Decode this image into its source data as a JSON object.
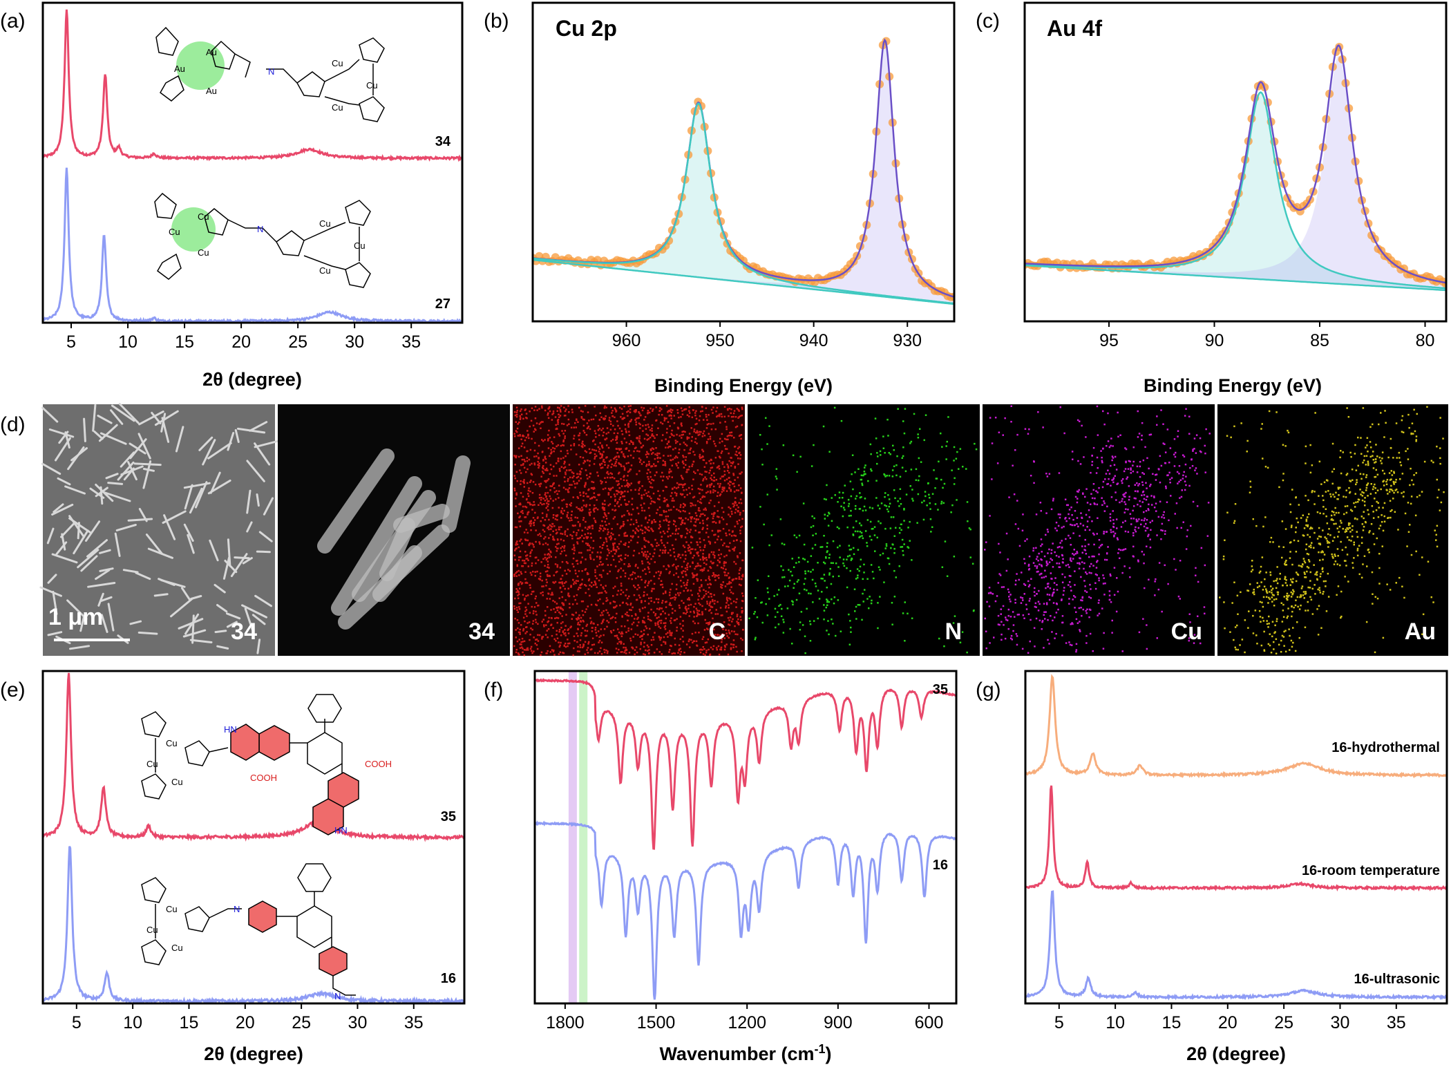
{
  "panel_labels": [
    "(a)",
    "(b)",
    "(c)",
    "(d)",
    "(e)",
    "(f)",
    "(g)"
  ],
  "colors": {
    "red": "#e8486a",
    "blue": "#8e9cf5",
    "orange": "#f7ad7c",
    "xps_points": "#f79a3a",
    "fit_teal": "#40c9c0",
    "fit_purple": "#6a4fc7"
  },
  "chart_data": [
    {
      "panel": "(a)",
      "type": "line",
      "xlabel": "2θ (degree)",
      "xlim": [
        2.5,
        39.5
      ],
      "xticks": [
        5,
        10,
        15,
        20,
        25,
        30,
        35
      ],
      "series": [
        {
          "name": "34",
          "color": "red",
          "peaks": [
            [
              4.6,
              1.0
            ],
            [
              8.0,
              0.56
            ],
            [
              9.2,
              0.06
            ],
            [
              12.3,
              0.03
            ],
            [
              26.0,
              0.06
            ]
          ]
        },
        {
          "name": "27",
          "color": "blue",
          "peaks": [
            [
              4.6,
              1.0
            ],
            [
              7.9,
              0.56
            ],
            [
              12.3,
              0.02
            ],
            [
              27.8,
              0.06
            ]
          ]
        }
      ],
      "structure_labels": [
        "Au",
        "Au",
        "Au",
        "Cu",
        "Cu",
        "Cu",
        "N"
      ]
    },
    {
      "panel": "(b)",
      "type": "line",
      "title": "Cu 2p",
      "xlabel": "Binding Energy (eV)",
      "xlim": [
        970,
        925
      ],
      "x_reversed": true,
      "xticks": [
        960,
        950,
        940,
        930
      ],
      "peaks": [
        [
          952.3,
          0.68
        ],
        [
          932.4,
          1.0
        ]
      ]
    },
    {
      "panel": "(c)",
      "type": "line",
      "title": "Au 4f",
      "xlabel": "Binding Energy (eV)",
      "xlim": [
        99,
        79
      ],
      "x_reversed": true,
      "xticks": [
        95,
        90,
        85,
        80
      ],
      "peaks": [
        [
          87.8,
          0.82
        ],
        [
          84.1,
          1.0
        ]
      ]
    },
    {
      "panel": "(e)",
      "type": "line",
      "xlabel": "2θ (degree)",
      "xlim": [
        2.0,
        39.5
      ],
      "xticks": [
        5,
        10,
        15,
        20,
        25,
        30,
        35
      ],
      "series": [
        {
          "name": "35",
          "color": "red",
          "peaks": [
            [
              4.3,
              1.0
            ],
            [
              7.4,
              0.3
            ],
            [
              11.4,
              0.07
            ],
            [
              26.5,
              0.1
            ]
          ]
        },
        {
          "name": "16",
          "color": "blue",
          "peaks": [
            [
              4.4,
              1.0
            ],
            [
              7.7,
              0.18
            ],
            [
              26.8,
              0.05
            ]
          ]
        }
      ],
      "structure_labels": [
        "Cu",
        "N",
        "HN",
        "COOH"
      ]
    },
    {
      "panel": "(f)",
      "type": "line",
      "xlabel": "Wavenumber (cm⁻¹)",
      "xlim": [
        1900,
        510
      ],
      "x_reversed": true,
      "xticks": [
        1800,
        1500,
        1200,
        900,
        600
      ],
      "highlight_bands": [
        {
          "x": 1775,
          "color": "#d8b4f0"
        },
        {
          "x": 1740,
          "color": "#b6eeb0"
        }
      ],
      "series": [
        {
          "name": "35",
          "color": "red",
          "bands": [
            [
              1690,
              0.25
            ],
            [
              1617,
              0.5
            ],
            [
              1560,
              0.35
            ],
            [
              1508,
              0.9
            ],
            [
              1445,
              0.6
            ],
            [
              1380,
              0.85
            ],
            [
              1318,
              0.45
            ],
            [
              1230,
              0.55
            ],
            [
              1207,
              0.42
            ],
            [
              1160,
              0.35
            ],
            [
              1055,
              0.3
            ],
            [
              1030,
              0.28
            ],
            [
              895,
              0.28
            ],
            [
              840,
              0.42
            ],
            [
              806,
              0.55
            ],
            [
              770,
              0.4
            ],
            [
              690,
              0.28
            ],
            [
              625,
              0.2
            ]
          ]
        },
        {
          "name": "16",
          "color": "blue",
          "bands": [
            [
              1680,
              0.4
            ],
            [
              1600,
              0.55
            ],
            [
              1560,
              0.35
            ],
            [
              1505,
              0.95
            ],
            [
              1440,
              0.5
            ],
            [
              1360,
              0.7
            ],
            [
              1220,
              0.5
            ],
            [
              1195,
              0.45
            ],
            [
              1160,
              0.38
            ],
            [
              1030,
              0.32
            ],
            [
              900,
              0.35
            ],
            [
              850,
              0.42
            ],
            [
              808,
              0.75
            ],
            [
              770,
              0.4
            ],
            [
              690,
              0.35
            ],
            [
              615,
              0.45
            ]
          ]
        }
      ]
    },
    {
      "panel": "(g)",
      "type": "line",
      "xlabel": "2θ (degree)",
      "xlim": [
        2.0,
        39.5
      ],
      "xticks": [
        5,
        10,
        15,
        20,
        25,
        30,
        35
      ],
      "series": [
        {
          "name": "16-hydrothermal",
          "color": "orange",
          "peaks": [
            [
              4.4,
              1.0
            ],
            [
              8.0,
              0.22
            ],
            [
              12.2,
              0.1
            ],
            [
              26.8,
              0.12
            ]
          ]
        },
        {
          "name": "16-room temperature",
          "color": "red",
          "peaks": [
            [
              4.3,
              1.0
            ],
            [
              7.5,
              0.25
            ],
            [
              11.4,
              0.05
            ],
            [
              26.4,
              0.04
            ]
          ]
        },
        {
          "name": "16-ultrasonic",
          "color": "blue",
          "peaks": [
            [
              4.4,
              1.0
            ],
            [
              7.6,
              0.18
            ],
            [
              11.8,
              0.04
            ],
            [
              26.8,
              0.06
            ]
          ]
        }
      ]
    }
  ],
  "images": {
    "panel": "(d)",
    "tiles": [
      {
        "label": "34",
        "scalebar": "1 μm",
        "kind": "sem"
      },
      {
        "label": "34",
        "kind": "haadf"
      },
      {
        "label": "C",
        "kind": "map",
        "color": "#d11b1b"
      },
      {
        "label": "N",
        "kind": "map",
        "color": "#27d11b"
      },
      {
        "label": "Cu",
        "kind": "map",
        "color": "#c81bd1"
      },
      {
        "label": "Au",
        "kind": "map",
        "color": "#d1c21b"
      }
    ]
  }
}
